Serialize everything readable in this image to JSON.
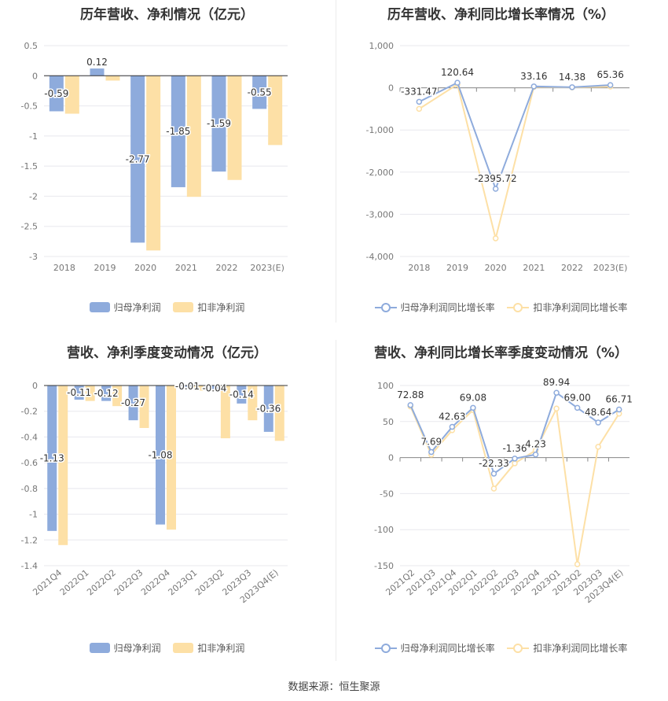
{
  "colors": {
    "primary": "#8eabdc",
    "secondary": "#fde0a6",
    "grid": "#e8e8ee",
    "axis": "#888888",
    "text": "#777777"
  },
  "source": "数据来源：恒生聚源",
  "chart_data": [
    {
      "type": "bar",
      "title": "历年营收、净利情况（亿元）",
      "categories": [
        "2018",
        "2019",
        "2020",
        "2021",
        "2022",
        "2023(E)"
      ],
      "ylim": [
        -3,
        0.5
      ],
      "yticks": [
        0.5,
        0,
        -0.5,
        -1,
        -1.5,
        -2,
        -2.5,
        -3
      ],
      "ytick_labels": [
        "0.5",
        "0",
        "-0.5",
        "-1",
        "-1.5",
        "-2",
        "-2.5",
        "-3"
      ],
      "grid": true,
      "legend_position": "bottom",
      "series": [
        {
          "name": "归母净利润",
          "values": [
            -0.59,
            0.12,
            -2.77,
            -1.85,
            -1.59,
            -0.55
          ],
          "labels": [
            "-0.59",
            "0.12",
            "-2.77",
            "-1.85",
            "-1.59",
            "-0.55"
          ]
        },
        {
          "name": "扣非净利润",
          "values": [
            -0.63,
            -0.08,
            -2.9,
            -2.01,
            -1.73,
            -1.15
          ]
        }
      ]
    },
    {
      "type": "line",
      "title": "历年营收、净利同比增长率情况（%）",
      "categories": [
        "2018",
        "2019",
        "2020",
        "2021",
        "2022",
        "2023(E)"
      ],
      "ylim": [
        -4000,
        1000
      ],
      "yticks": [
        1000,
        0,
        -1000,
        -2000,
        -3000,
        -4000
      ],
      "ytick_labels": [
        "1,000",
        "0",
        "-1,000",
        "-2,000",
        "-3,000",
        "-4,000"
      ],
      "grid": true,
      "legend_position": "bottom",
      "series": [
        {
          "name": "归母净利润同比增长率",
          "values": [
            -331.47,
            120.64,
            -2395.72,
            33.16,
            14.38,
            65.36
          ],
          "labels": [
            "-331.47",
            "120.64",
            "-2395.72",
            "33.16",
            "14.38",
            "65.36"
          ]
        },
        {
          "name": "扣非净利润同比增长率",
          "values": [
            -500,
            80,
            -3570,
            20,
            10,
            30
          ]
        }
      ]
    },
    {
      "type": "bar",
      "title": "营收、净利季度变动情况（亿元）",
      "categories": [
        "2021Q4",
        "2022Q1",
        "2022Q2",
        "2022Q3",
        "2022Q4",
        "2023Q1",
        "2023Q2",
        "2023Q3",
        "2023Q4(E)"
      ],
      "ylim": [
        -1.4,
        0
      ],
      "yticks": [
        0,
        -0.2,
        -0.4,
        -0.6,
        -0.8,
        -1,
        -1.2,
        -1.4
      ],
      "ytick_labels": [
        "0",
        "-0.2",
        "-0.4",
        "-0.6",
        "-0.8",
        "-1",
        "-1.2",
        "-1.4"
      ],
      "grid": true,
      "legend_position": "bottom",
      "series": [
        {
          "name": "归母净利润",
          "values": [
            -1.13,
            -0.11,
            -0.12,
            -0.27,
            -1.08,
            -0.01,
            -0.04,
            -0.14,
            -0.36
          ],
          "labels": [
            "-1.13",
            "-0.11",
            "-0.12",
            "-0.27",
            "-1.08",
            "-0.01",
            "-0.04",
            "-0.14",
            "-0.36"
          ]
        },
        {
          "name": "扣非净利润",
          "values": [
            -1.24,
            -0.12,
            -0.16,
            -0.33,
            -1.12,
            -0.04,
            -0.41,
            -0.27,
            -0.43
          ]
        }
      ]
    },
    {
      "type": "line",
      "title": "营收、净利同比增长率季度变动情况（%）",
      "categories": [
        "2021Q2",
        "2021Q3",
        "2021Q4",
        "2022Q1",
        "2022Q2",
        "2022Q3",
        "2022Q4",
        "2023Q1",
        "2023Q2",
        "2023Q3",
        "2023Q4(E)"
      ],
      "ylim": [
        -150,
        100
      ],
      "yticks": [
        100,
        50,
        0,
        -50,
        -100,
        -150
      ],
      "ytick_labels": [
        "100",
        "50",
        "0",
        "-50",
        "-100",
        "-150"
      ],
      "grid": true,
      "legend_position": "bottom",
      "series": [
        {
          "name": "归母净利润同比增长率",
          "values": [
            72.88,
            7.69,
            42.63,
            69.08,
            -22.33,
            -1.36,
            4.23,
            89.94,
            69.0,
            48.64,
            66.71
          ],
          "labels": [
            "72.88",
            "7.69",
            "42.63",
            "69.08",
            "-22.33",
            "-1.36",
            "4.23",
            "89.94",
            "69.00",
            "48.64",
            "66.71"
          ]
        },
        {
          "name": "扣非净利润同比增长率",
          "values": [
            71,
            4,
            38,
            66,
            -43,
            -8,
            10,
            68,
            -148,
            15,
            61
          ]
        }
      ]
    }
  ]
}
